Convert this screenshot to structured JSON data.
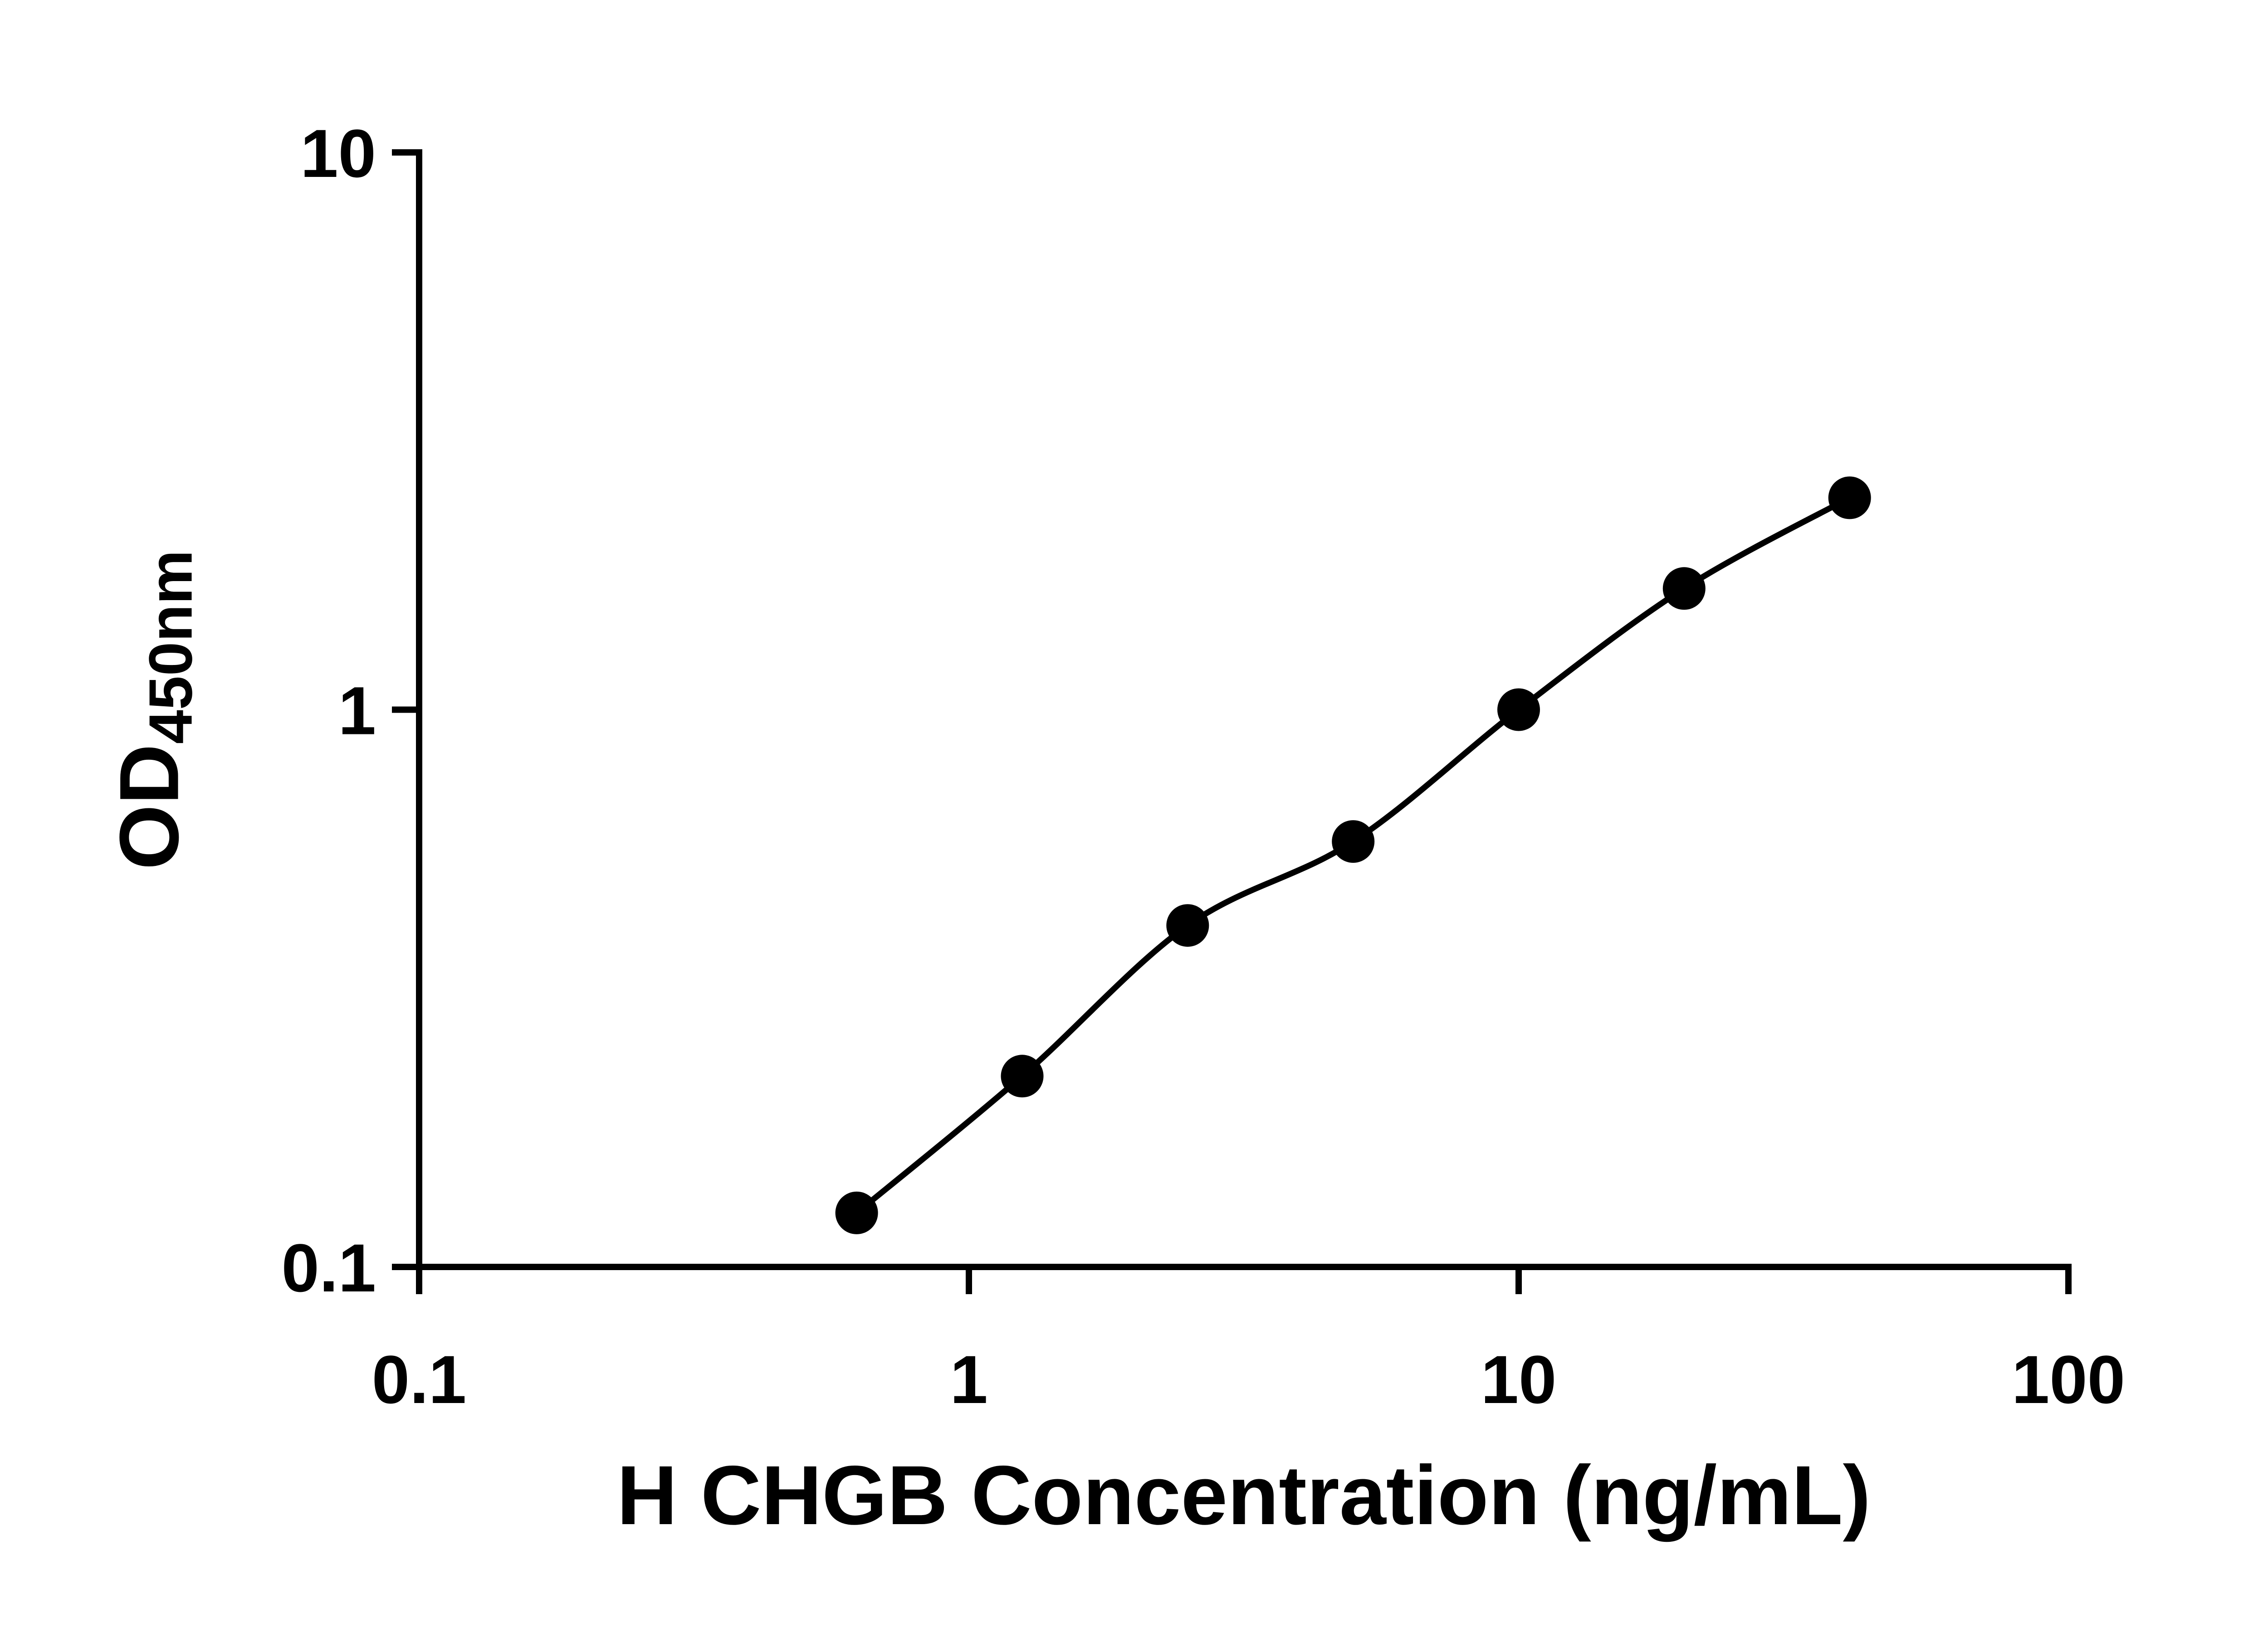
{
  "chart_data": {
    "type": "scatter",
    "x": [
      0.625,
      1.25,
      2.5,
      5,
      10,
      20,
      40
    ],
    "y": [
      0.125,
      0.22,
      0.41,
      0.58,
      1.0,
      1.65,
      2.4
    ],
    "xlabel": "H CHGB Concentration (ng/mL)",
    "ylabel_main": "OD",
    "ylabel_sub": "450nm",
    "xscale": "log",
    "yscale": "log",
    "xlim": [
      0.1,
      100
    ],
    "ylim": [
      0.1,
      10
    ],
    "x_ticks": [
      0.1,
      1,
      10,
      100
    ],
    "x_tick_labels": [
      "0.1",
      "1",
      "10",
      "100"
    ],
    "y_ticks": [
      0.1,
      1,
      10
    ],
    "y_tick_labels": [
      "0.1",
      "1",
      "10"
    ],
    "grid": false,
    "legend": "none",
    "line_color": "#000000",
    "marker_color": "#000000",
    "background": "#ffffff"
  }
}
